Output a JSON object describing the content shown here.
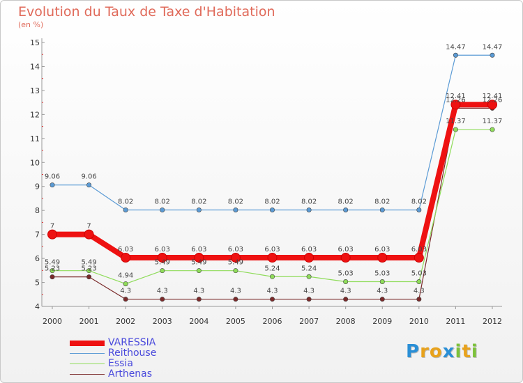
{
  "title": "Evolution du Taux de Taxe d'Habitation",
  "subtitle": "(en %)",
  "logo": {
    "text": "Proxiti",
    "letters": [
      {
        "ch": "P",
        "color": "#2a8fd6"
      },
      {
        "ch": "r",
        "color": "#e8a21c"
      },
      {
        "ch": "o",
        "color": "#e8a21c"
      },
      {
        "ch": "x",
        "color": "#2a8fd6"
      },
      {
        "ch": "i",
        "color": "#7cc23a"
      },
      {
        "ch": "t",
        "color": "#e8a21c"
      },
      {
        "ch": "i",
        "color": "#7cc23a"
      }
    ]
  },
  "chart_data": {
    "type": "line",
    "x": [
      "2000",
      "2001",
      "2002",
      "2003",
      "2004",
      "2005",
      "2006",
      "2007",
      "2008",
      "2009",
      "2010",
      "2011",
      "2012"
    ],
    "ylim": [
      4,
      15
    ],
    "yticks": [
      "4",
      "5",
      "6",
      "7",
      "8",
      "9",
      "10",
      "11",
      "12",
      "13",
      "14",
      "15"
    ],
    "grid": false,
    "legend_position": "bottom-left",
    "series": [
      {
        "name": "VARESSIA",
        "color": "#ee1111",
        "values": [
          7,
          7,
          6.03,
          6.03,
          6.03,
          6.03,
          6.03,
          6.03,
          6.03,
          6.03,
          6.03,
          12.41,
          12.41
        ],
        "labels": [
          "7",
          "7",
          "6.03",
          "6.03",
          "6.03",
          "6.03",
          "6.03",
          "6.03",
          "6.03",
          "6.03",
          "6.03",
          "12.41",
          "12.41"
        ]
      },
      {
        "name": "Reithouse",
        "color": "#5b9bd5",
        "values": [
          9.06,
          9.06,
          8.02,
          8.02,
          8.02,
          8.02,
          8.02,
          8.02,
          8.02,
          8.02,
          8.02,
          14.47,
          14.47
        ],
        "labels": [
          "9.06",
          "9.06",
          "8.02",
          "8.02",
          "8.02",
          "8.02",
          "8.02",
          "8.02",
          "8.02",
          "8.02",
          "8.02",
          "14.47",
          "14.47"
        ]
      },
      {
        "name": "Essia",
        "color": "#8fdc5a",
        "values": [
          5.49,
          5.49,
          4.94,
          5.49,
          5.49,
          5.49,
          5.24,
          5.24,
          5.03,
          5.03,
          5.03,
          11.37,
          11.37
        ],
        "labels": [
          "5.49",
          "5.49",
          "4.94",
          "5.49",
          "5.49",
          "5.49",
          "5.24",
          "5.24",
          "5.03",
          "5.03",
          "5.03",
          "11.37",
          "11.37"
        ]
      },
      {
        "name": "Arthenas",
        "color": "#7a2a2a",
        "values": [
          5.23,
          5.23,
          4.3,
          4.3,
          4.3,
          4.3,
          4.3,
          4.3,
          4.3,
          4.3,
          4.3,
          12.26,
          12.26
        ],
        "labels": [
          "5.23",
          "5.23",
          "4.3",
          "4.3",
          "4.3",
          "4.3",
          "4.3",
          "4.3",
          "4.3",
          "4.3",
          "4.3",
          "12.26",
          "12.26"
        ]
      }
    ]
  }
}
